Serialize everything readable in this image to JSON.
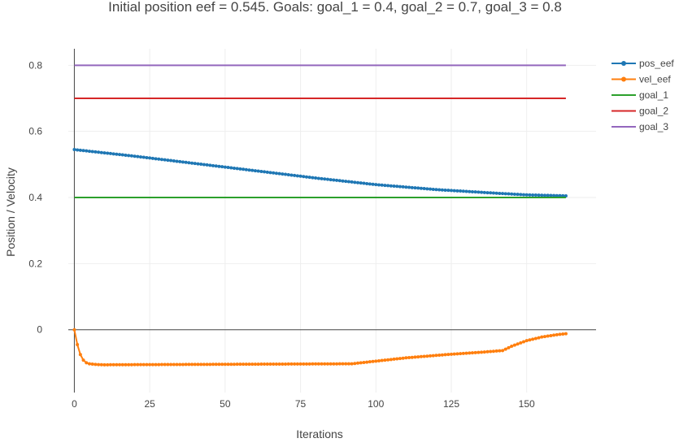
{
  "chart_data": {
    "type": "line",
    "title": "Initial position eef = 0.545. Goals: goal_1 = 0.4, goal_2 = 0.7, goal_3 = 0.8",
    "xlabel": "Iterations",
    "ylabel": "Position / Velocity",
    "xlim": [
      -2,
      173
    ],
    "ylim": [
      -0.19,
      0.85
    ],
    "x_ticks": [
      0,
      25,
      50,
      75,
      100,
      125,
      150
    ],
    "y_ticks": [
      0,
      0.2,
      0.4,
      0.6,
      0.8
    ],
    "x_tick_labels": [
      "0",
      "25",
      "50",
      "75",
      "100",
      "125",
      "150"
    ],
    "y_tick_labels": [
      "0",
      "0.2",
      "0.4",
      "0.6",
      "0.8"
    ],
    "grid": true,
    "legend_position": "top-right",
    "series": [
      {
        "name": "pos_eef",
        "color": "#1f77b4",
        "markers": true,
        "x_range": [
          0,
          163
        ],
        "points": [
          [
            0,
            0.545
          ],
          [
            20,
            0.525
          ],
          [
            40,
            0.503
          ],
          [
            60,
            0.481
          ],
          [
            80,
            0.459
          ],
          [
            100,
            0.439
          ],
          [
            120,
            0.424
          ],
          [
            140,
            0.413
          ],
          [
            150,
            0.408
          ],
          [
            163,
            0.405
          ]
        ]
      },
      {
        "name": "vel_eef",
        "color": "#ff7f0e",
        "markers": true,
        "x_range": [
          0,
          163
        ],
        "points": [
          [
            0,
            0.0
          ],
          [
            1,
            -0.045
          ],
          [
            2,
            -0.075
          ],
          [
            3,
            -0.092
          ],
          [
            4,
            -0.1
          ],
          [
            5,
            -0.103
          ],
          [
            7,
            -0.105
          ],
          [
            10,
            -0.106
          ],
          [
            92,
            -0.103
          ],
          [
            100,
            -0.095
          ],
          [
            110,
            -0.085
          ],
          [
            125,
            -0.074
          ],
          [
            135,
            -0.068
          ],
          [
            142,
            -0.063
          ],
          [
            145,
            -0.05
          ],
          [
            150,
            -0.033
          ],
          [
            155,
            -0.022
          ],
          [
            160,
            -0.015
          ],
          [
            163,
            -0.012
          ]
        ]
      },
      {
        "name": "goal_1",
        "color": "#2ca02c",
        "markers": false,
        "x_range": [
          0,
          163
        ],
        "points": [
          [
            0,
            0.4
          ],
          [
            163,
            0.4
          ]
        ]
      },
      {
        "name": "goal_2",
        "color": "#d62728",
        "markers": false,
        "x_range": [
          0,
          163
        ],
        "points": [
          [
            0,
            0.7
          ],
          [
            163,
            0.7
          ]
        ]
      },
      {
        "name": "goal_3",
        "color": "#9467bd",
        "markers": false,
        "x_range": [
          0,
          163
        ],
        "points": [
          [
            0,
            0.8
          ],
          [
            163,
            0.8
          ]
        ]
      }
    ]
  }
}
